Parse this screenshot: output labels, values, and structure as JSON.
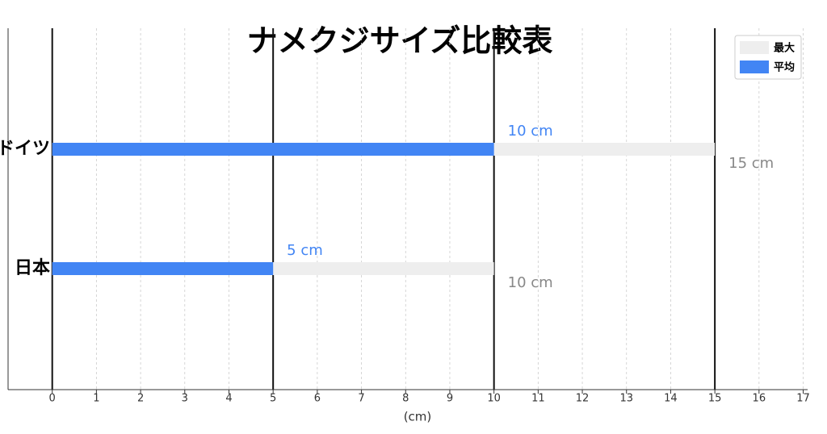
{
  "chart_data": {
    "type": "barh",
    "title": "ナメクジサイズ比較表",
    "categories": [
      "ドイツ",
      "日本"
    ],
    "series": [
      {
        "name": "最大",
        "color": "#eeeeee",
        "values": [
          15,
          10
        ],
        "value_labels": [
          "15 cm",
          "10 cm"
        ],
        "label_color": "#888888"
      },
      {
        "name": "平均",
        "color": "#4285f4",
        "values": [
          10,
          5
        ],
        "value_labels": [
          "10 cm",
          "5 cm"
        ],
        "label_color": "#4285f4"
      }
    ],
    "xlabel": "(cm)",
    "xlim": [
      -1,
      17.1
    ],
    "xticks": [
      0,
      1,
      2,
      3,
      4,
      5,
      6,
      7,
      8,
      9,
      10,
      11,
      12,
      13,
      14,
      15,
      16,
      17
    ],
    "reference_lines": [
      0,
      5,
      10,
      15
    ],
    "grid": true,
    "legend": "upper right"
  }
}
